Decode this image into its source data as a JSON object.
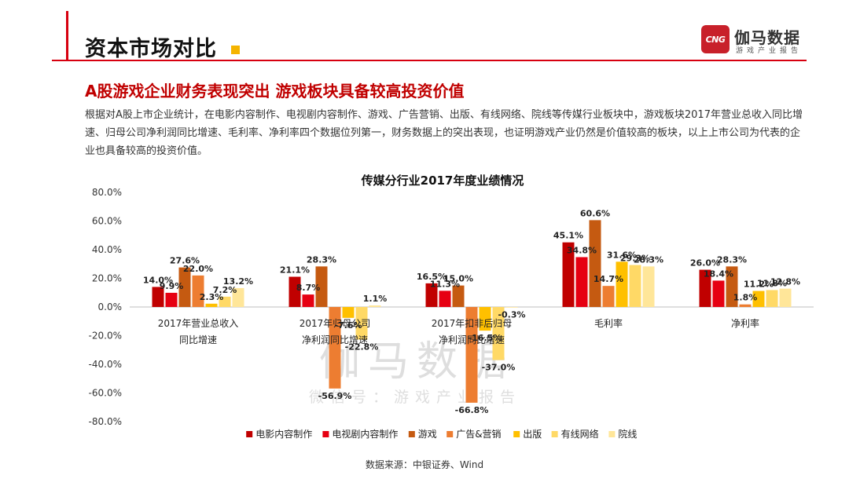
{
  "header": {
    "title": "资本市场对比",
    "accent_color": "#d7000f",
    "square_color": "#f5b400"
  },
  "logo": {
    "mark": "CNG",
    "name": "伽马数据",
    "subtitle": "游戏产业报告",
    "mark_color": "#c8202a"
  },
  "subtitle": {
    "text": "A股游戏企业财务表现突出  游戏板块具备较高投资价值",
    "color": "#c00000"
  },
  "body": {
    "paragraph": "根据对A股上市企业统计，在电影内容制作、电视剧内容制作、游戏、广告营销、出版、有线网络、院线等传媒行业板块中，游戏板块2017年营业总收入同比增速、归母公司净利润同比增速、毛利率、净利率四个数据位列第一，财务数据上的突出表现，也证明游戏产业仍然是价值较高的板块，以上上市公司为代表的企业也具备较高的投资价值。"
  },
  "watermark": {
    "main": "伽马数据",
    "sub": "微信号：游戏产业报告"
  },
  "source": "数据来源：中银证券、Wind",
  "chart_data": {
    "type": "bar",
    "title": "传媒分行业2017年度业绩情况",
    "categories": [
      [
        "2017年营业总收入",
        "同比增速"
      ],
      [
        "2017年归母公司",
        "净利润同比增速"
      ],
      [
        "2017年扣非后归母",
        "净利润同比增速"
      ],
      [
        "毛利率"
      ],
      [
        "净利率"
      ]
    ],
    "ylim": [
      -80,
      80
    ],
    "ytick_step": 20,
    "ytick_labels": [
      "80.0%",
      "60.0%",
      "40.0%",
      "20.0%",
      "0.0%",
      "-20.0%",
      "-40.0%",
      "-60.0%",
      "-80.0%"
    ],
    "legend_position": "bottom",
    "grid": false,
    "series": [
      {
        "name": "电影内容制作",
        "color": "#c00000",
        "values": [
          14.0,
          21.1,
          16.5,
          45.1,
          26.0
        ],
        "labels": [
          "14.0%",
          "21.1%",
          "16.5%",
          "45.1%",
          "26.0%"
        ]
      },
      {
        "name": "电视剧内容制作",
        "color": "#e60012",
        "values": [
          9.9,
          8.7,
          11.3,
          34.8,
          18.4
        ],
        "labels": [
          "9.9%",
          "8.7%",
          "11.3%",
          "34.8%",
          "18.4%"
        ]
      },
      {
        "name": "游戏",
        "color": "#c55a11",
        "values": [
          27.6,
          28.3,
          15.0,
          60.6,
          28.3
        ],
        "labels": [
          "27.6%",
          "28.3%",
          "15.0%",
          "60.6%",
          "28.3%"
        ]
      },
      {
        "name": "广告&营销",
        "color": "#ed7d31",
        "values": [
          22.0,
          -56.9,
          -66.8,
          14.7,
          1.8
        ],
        "labels": [
          "22.0%",
          "-56.9%",
          "-66.8%",
          "14.7%",
          "1.8%"
        ]
      },
      {
        "name": "出版",
        "color": "#ffc000",
        "values": [
          2.3,
          -7.6,
          -16.5,
          31.6,
          11.2
        ],
        "labels": [
          "2.3%",
          "-7.6%",
          "-16.5%",
          "31.6%",
          "11.2%"
        ]
      },
      {
        "name": "有线网络",
        "color": "#ffd966",
        "values": [
          7.2,
          -22.8,
          -37.0,
          29.3,
          11.8
        ],
        "labels": [
          "7.2%",
          "-22.8%",
          "-37.0%",
          "29.3%",
          "11.8%"
        ]
      },
      {
        "name": "院线",
        "color": "#ffe699",
        "values": [
          13.2,
          1.1,
          -0.3,
          28.3,
          12.8
        ],
        "labels": [
          "13.2%",
          "1.1%",
          "-0.3%",
          "28.3%",
          "12.8%"
        ]
      }
    ]
  }
}
